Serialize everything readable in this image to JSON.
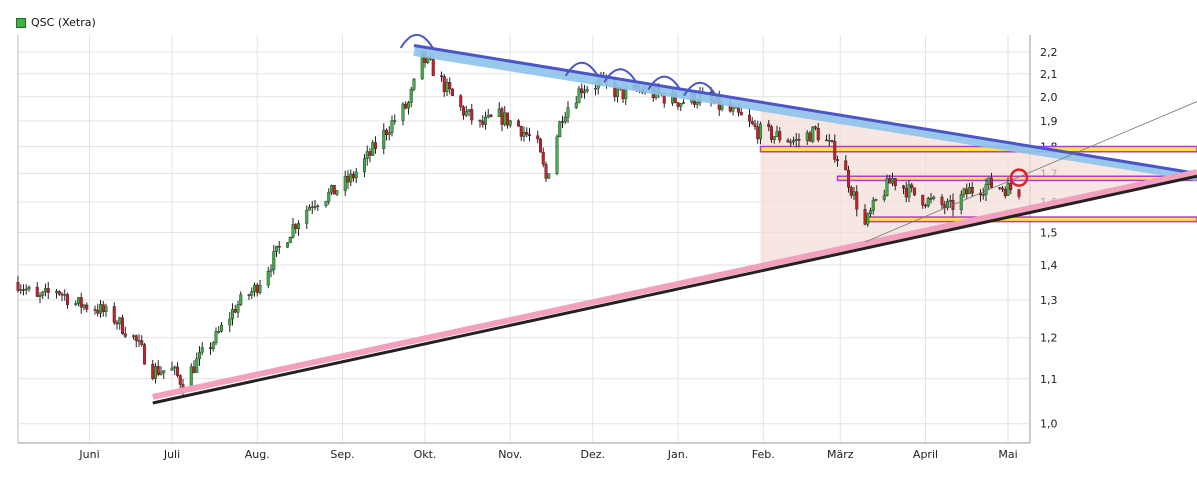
{
  "legend": {
    "label": "QSC (Xetra)",
    "color": "#3cb043"
  },
  "chart_data": {
    "type": "candlestick",
    "legend": [
      "QSC (Xetra)"
    ],
    "x_tick_labels": [
      "Juni",
      "Juli",
      "Aug.",
      "Sep.",
      "Okt.",
      "Nov.",
      "Dez.",
      "Jan.",
      "Feb.",
      "März",
      "April",
      "Mai"
    ],
    "y_tick_labels": [
      "1,0",
      "1,1",
      "1,2",
      "1,3",
      "1,4",
      "1,5",
      "1,6",
      "1,7",
      "1,8",
      "1,9",
      "2,0",
      "2,1",
      "2,2"
    ],
    "y_tick_values": [
      1.0,
      1.1,
      1.2,
      1.3,
      1.4,
      1.5,
      1.6,
      1.7,
      1.8,
      1.9,
      2.0,
      2.1,
      2.2
    ],
    "y_scale": "log",
    "ylim": [
      0.96,
      2.28
    ],
    "grid": true,
    "price_path": [
      [
        "2013-05-06",
        1.35
      ],
      [
        "2013-05-13",
        1.3
      ],
      [
        "2013-05-20",
        1.33
      ],
      [
        "2013-05-27",
        1.29
      ],
      [
        "2013-06-03",
        1.28
      ],
      [
        "2013-06-10",
        1.25
      ],
      [
        "2013-06-17",
        1.2
      ],
      [
        "2013-06-24",
        1.12
      ],
      [
        "2013-07-01",
        1.12
      ],
      [
        "2013-07-05",
        1.09
      ],
      [
        "2013-07-10",
        1.14
      ],
      [
        "2013-07-17",
        1.2
      ],
      [
        "2013-07-24",
        1.28
      ],
      [
        "2013-07-31",
        1.33
      ],
      [
        "2013-08-07",
        1.42
      ],
      [
        "2013-08-14",
        1.52
      ],
      [
        "2013-08-21",
        1.6
      ],
      [
        "2013-08-28",
        1.63
      ],
      [
        "2013-09-04",
        1.68
      ],
      [
        "2013-09-11",
        1.77
      ],
      [
        "2013-09-18",
        1.88
      ],
      [
        "2013-09-25",
        1.97
      ],
      [
        "2013-09-30",
        2.17
      ],
      [
        "2013-10-04",
        2.12
      ],
      [
        "2013-10-09",
        2.03
      ],
      [
        "2013-10-14",
        1.95
      ],
      [
        "2013-10-21",
        1.88
      ],
      [
        "2013-10-28",
        1.92
      ],
      [
        "2013-11-04",
        1.88
      ],
      [
        "2013-11-11",
        1.8
      ],
      [
        "2013-11-14",
        1.68
      ],
      [
        "2013-11-20",
        1.93
      ],
      [
        "2013-11-27",
        2.04
      ],
      [
        "2013-12-04",
        2.06
      ],
      [
        "2013-12-11",
        2.01
      ],
      [
        "2013-12-18",
        2.03
      ],
      [
        "2014-01-02",
        1.98
      ],
      [
        "2014-01-09",
        2.0
      ],
      [
        "2014-01-16",
        1.96
      ],
      [
        "2014-01-23",
        1.92
      ],
      [
        "2014-01-30",
        1.86
      ],
      [
        "2014-02-06",
        1.84
      ],
      [
        "2014-02-13",
        1.82
      ],
      [
        "2014-02-20",
        1.86
      ],
      [
        "2014-02-27",
        1.78
      ],
      [
        "2014-03-03",
        1.7
      ],
      [
        "2014-03-06",
        1.62
      ],
      [
        "2014-03-10",
        1.52
      ],
      [
        "2014-03-14",
        1.6
      ],
      [
        "2014-03-20",
        1.68
      ],
      [
        "2014-03-27",
        1.63
      ],
      [
        "2014-04-03",
        1.6
      ],
      [
        "2014-04-10",
        1.58
      ],
      [
        "2014-04-17",
        1.64
      ],
      [
        "2014-04-24",
        1.66
      ],
      [
        "2014-04-30",
        1.65
      ],
      [
        "2014-05-05",
        1.64
      ]
    ],
    "lines": [
      {
        "from": [
          "2013-09-27",
          2.23
        ],
        "to": [
          "2014-06-30",
          1.7
        ],
        "color": "#4a55c8"
      },
      {
        "from": [
          "2013-06-24",
          1.045
        ],
        "to": [
          "2014-06-30",
          1.69
        ],
        "color": "#222222"
      },
      {
        "from": [
          "2014-03-10",
          1.47
        ],
        "to": [
          "2014-06-30",
          1.98
        ],
        "color": "#777777"
      }
    ],
    "bands": [
      {
        "from": "2014-01-31",
        "to": "2014-06-30",
        "low": 1.78,
        "high": 1.8,
        "color": "#ffe14d"
      },
      {
        "from": "2014-02-28",
        "to": "2014-06-30",
        "low": 1.675,
        "high": 1.69,
        "color": "#ffe14d"
      },
      {
        "from": "2014-03-10",
        "to": "2014-06-30",
        "low": 1.535,
        "high": 1.55,
        "color": "#ffe14d"
      }
    ],
    "marker": {
      "date": "2014-05-05",
      "value": 1.685,
      "color": "#e02020"
    }
  }
}
